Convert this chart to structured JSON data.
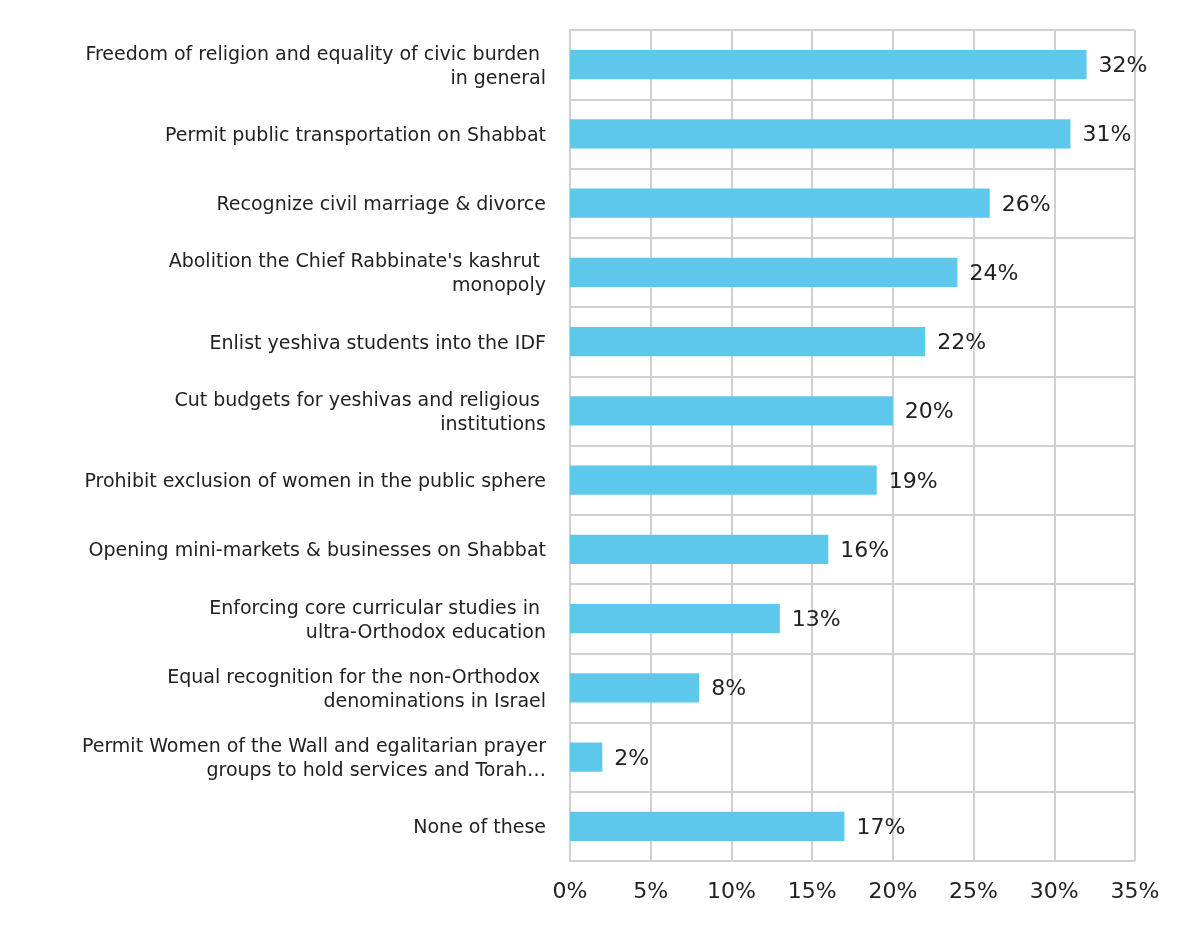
{
  "chart_data": {
    "type": "bar",
    "orientation": "horizontal",
    "categories": [
      "Freedom of religion and equality of civic burden in general",
      "Permit public transportation on Shabbat",
      "Recognize civil marriage & divorce",
      "Abolition the Chief Rabbinate's kashrut monopoly",
      "Enlist yeshiva students into the IDF",
      "Cut budgets for yeshivas and religious institutions",
      "Prohibit exclusion of women in the public sphere",
      "Opening mini-markets & businesses on Shabbat",
      "Enforcing core curricular studies in ultra-Orthodox education",
      "Equal recognition for the non-Orthodox denominations in Israel",
      "Permit Women of the Wall and egalitarian prayer groups to hold services and Torah…",
      "None of these"
    ],
    "values": [
      32,
      31,
      26,
      24,
      22,
      20,
      19,
      16,
      13,
      8,
      2,
      17
    ],
    "value_labels": [
      "32%",
      "31%",
      "26%",
      "24%",
      "22%",
      "20%",
      "19%",
      "16%",
      "13%",
      "8%",
      "2%",
      "17%"
    ],
    "color": "#5ec8ec",
    "xlim": [
      0,
      35
    ],
    "xticks": [
      {
        "value": 0,
        "label": "0%"
      },
      {
        "value": 5,
        "label": "5%"
      },
      {
        "value": 10,
        "label": "10%"
      },
      {
        "value": 15,
        "label": "15%"
      },
      {
        "value": 20,
        "label": "20%"
      },
      {
        "value": 25,
        "label": "25%"
      },
      {
        "value": 30,
        "label": "30%"
      },
      {
        "value": 35,
        "label": "35%"
      }
    ],
    "grid": true
  }
}
